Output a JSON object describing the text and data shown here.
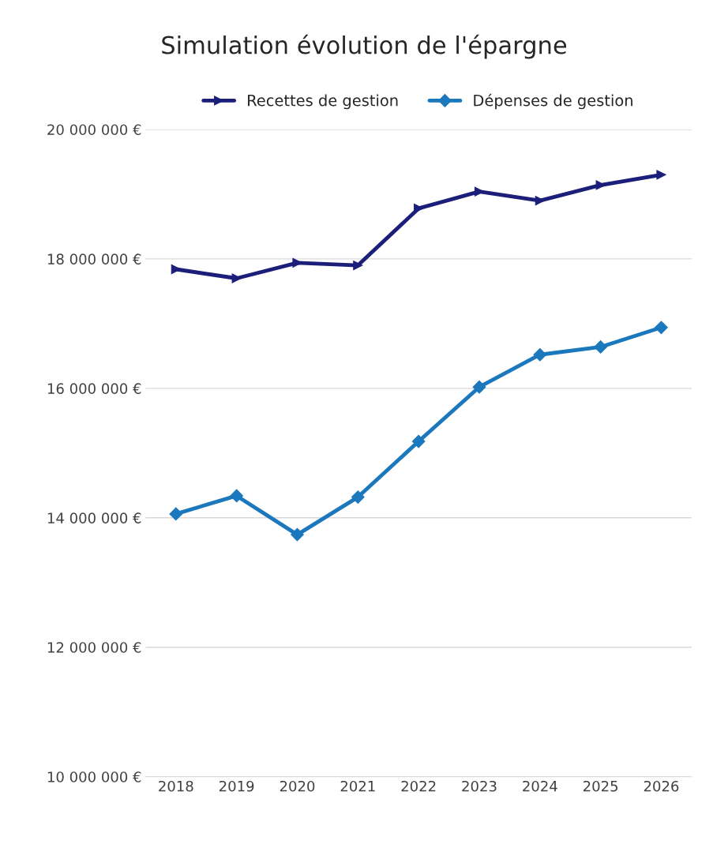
{
  "chart_data": {
    "type": "line",
    "title": "Simulation évolution de l'épargne",
    "categories": [
      "2018",
      "2019",
      "2020",
      "2021",
      "2022",
      "2023",
      "2024",
      "2025",
      "2026"
    ],
    "series": [
      {
        "name": "Recettes de gestion",
        "color": "#1c1f7a",
        "marker": "triangle",
        "values": [
          17840000,
          17700000,
          17940000,
          17900000,
          18780000,
          19040000,
          18900000,
          19140000,
          19300000
        ]
      },
      {
        "name": "Dépenses de gestion",
        "color": "#1b78bd",
        "marker": "diamond",
        "values": [
          14060000,
          14340000,
          13740000,
          14320000,
          15180000,
          16020000,
          16520000,
          16640000,
          16940000
        ]
      }
    ],
    "ylim": [
      10000000,
      20000000
    ],
    "yticks": [
      {
        "value": 10000000,
        "label": "10 000 000 €"
      },
      {
        "value": 12000000,
        "label": "12 000 000 €"
      },
      {
        "value": 14000000,
        "label": "14 000 000 €"
      },
      {
        "value": 16000000,
        "label": "16 000 000 €"
      },
      {
        "value": 18000000,
        "label": "18 000 000 €"
      },
      {
        "value": 20000000,
        "label": "20 000 000 €"
      }
    ],
    "grid": "y",
    "legend": "top",
    "line_style": "solid"
  }
}
